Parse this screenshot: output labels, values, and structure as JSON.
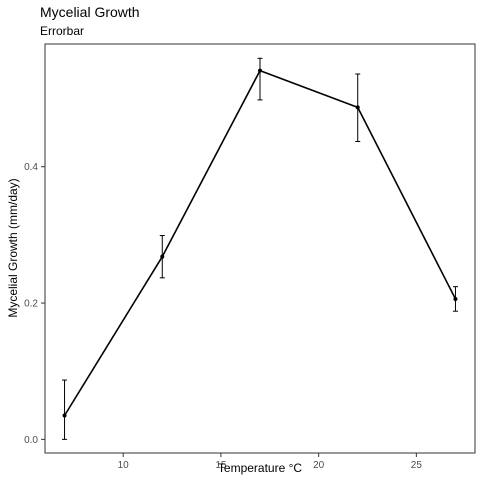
{
  "chart_data": {
    "type": "line",
    "title": "Mycelial Growth",
    "subtitle": "Errorbar",
    "xlabel": "Temperature °C",
    "ylabel": "Mycelial Growth (mm/day)",
    "xlim": [
      6.0,
      28.0
    ],
    "ylim": [
      -0.02,
      0.58
    ],
    "xticks": [
      10,
      15,
      20,
      25
    ],
    "yticks": [
      0.0,
      0.2,
      0.4
    ],
    "ytick_labels": [
      "0.0",
      "0.2",
      "0.4"
    ],
    "grid": false,
    "x": [
      7,
      12,
      17,
      22,
      27
    ],
    "y": [
      0.035,
      0.268,
      0.541,
      0.487,
      0.206
    ],
    "err_low": [
      0.0,
      0.237,
      0.498,
      0.437,
      0.188
    ],
    "err_high": [
      0.087,
      0.299,
      0.559,
      0.536,
      0.224
    ],
    "colors": {
      "line": "#000000",
      "axis": "#333333",
      "text": "#4d4d4d"
    }
  }
}
